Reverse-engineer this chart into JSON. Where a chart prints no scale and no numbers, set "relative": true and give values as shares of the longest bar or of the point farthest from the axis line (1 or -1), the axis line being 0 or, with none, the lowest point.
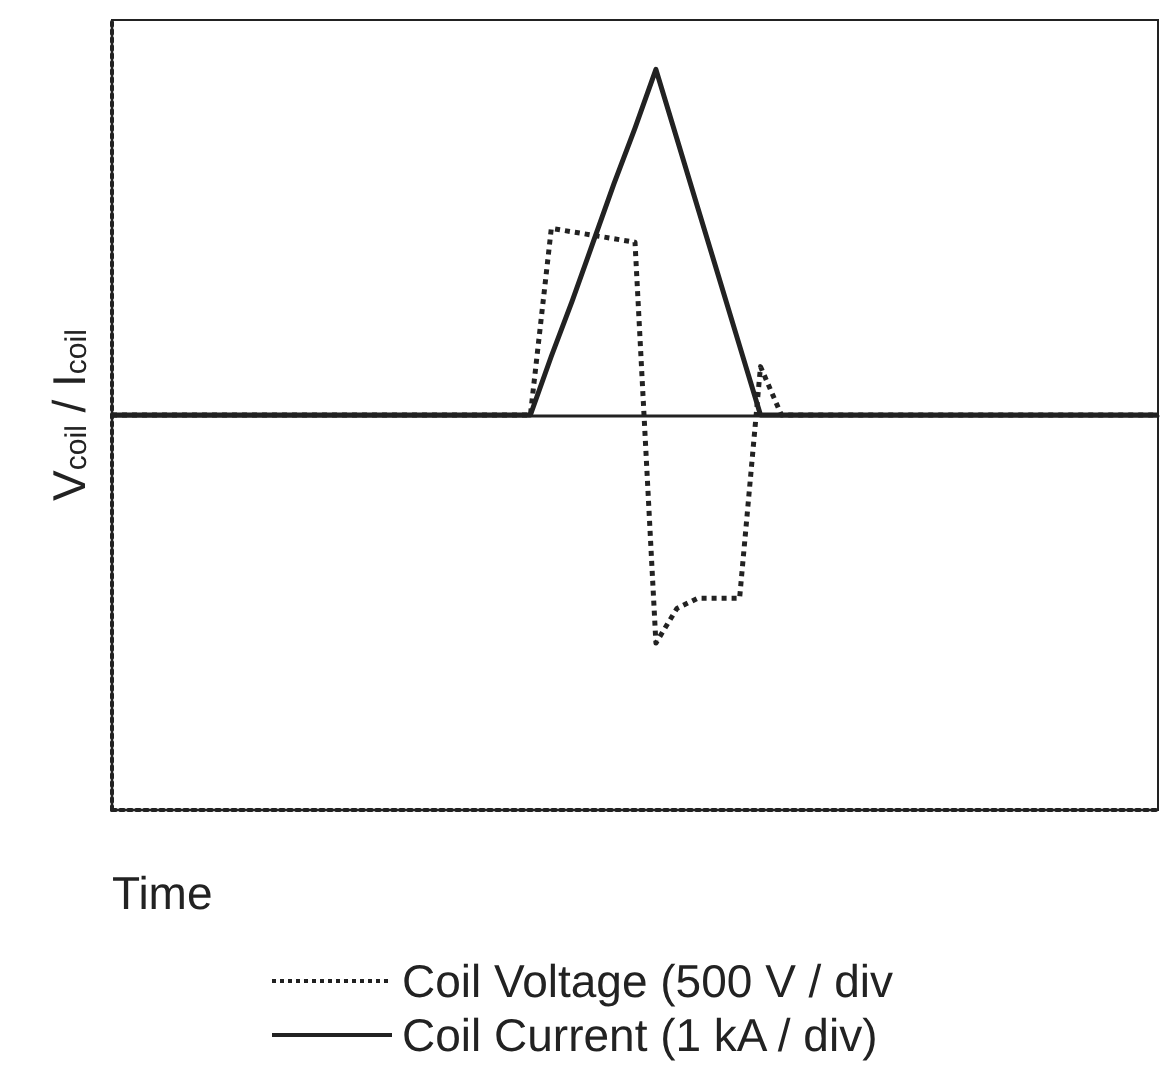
{
  "chart_data": {
    "type": "line",
    "relative": true,
    "xlabel": "Time",
    "ylabel": "V$_{coil}$ / I$_{coil}$",
    "categories": [
      null,
      null,
      null,
      null,
      null,
      null,
      null,
      null,
      null,
      null,
      null,
      null,
      null,
      null,
      null,
      null,
      null,
      null,
      null,
      null,
      null,
      null,
      null,
      null,
      null,
      null,
      null,
      null,
      null,
      null,
      null,
      null,
      null,
      null,
      null,
      null,
      null,
      null,
      null,
      null,
      null,
      null,
      null,
      null,
      null,
      null,
      null,
      null,
      null,
      null,
      null
    ],
    "series": [
      {
        "name": "Coil Voltage (500 V / div",
        "color": "#222222",
        "line_style": "dotted",
        "values": [
          0,
          0,
          0,
          0,
          0,
          0,
          0,
          0,
          0,
          0,
          0,
          0,
          0,
          0,
          0,
          0,
          0,
          0,
          0,
          0,
          0,
          0.54,
          0.53,
          0.52,
          0.51,
          0.5,
          -0.66,
          -0.56,
          -0.53,
          -0.53,
          -0.53,
          0.14,
          0,
          0,
          0,
          0,
          0,
          0,
          0,
          0,
          0,
          0,
          0,
          0,
          0,
          0,
          0,
          0,
          0,
          0,
          0
        ]
      },
      {
        "name": "Coil Current (1 kA / div)",
        "color": "#222222",
        "line_style": "solid",
        "values": [
          0,
          0,
          0,
          0,
          0,
          0,
          0,
          0,
          0,
          0,
          0,
          0,
          0,
          0,
          0,
          0,
          0,
          0,
          0,
          0,
          0,
          0.17,
          0.33,
          0.5,
          0.67,
          0.83,
          1,
          0.8,
          0.6,
          0.4,
          0.2,
          0,
          0,
          0,
          0,
          0,
          0,
          0,
          0,
          0,
          0,
          0,
          0,
          0,
          0,
          0,
          0,
          0,
          0,
          0,
          0
        ]
      }
    ],
    "grid": false,
    "legend": "bottom",
    "marker": "none"
  }
}
